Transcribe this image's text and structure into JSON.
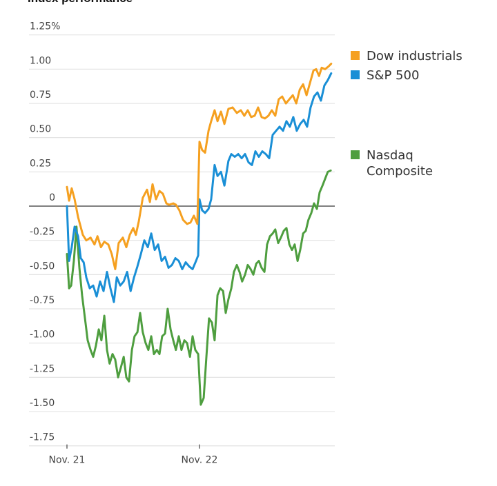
{
  "chart_data": {
    "type": "line",
    "title": "Index performance",
    "xlabel": "",
    "ylabel": "",
    "ylim": [
      -1.75,
      1.25
    ],
    "y_ticks": [
      1.25,
      1.0,
      0.75,
      0.5,
      0.25,
      0,
      -0.25,
      -0.5,
      -0.75,
      -1.0,
      -1.25,
      -1.5,
      -1.75
    ],
    "y_tick_labels": [
      "1.25%",
      "1.00",
      "0.75",
      "0.50",
      "0.25",
      "0",
      "-0.25",
      "-0.50",
      "-0.75",
      "-1.00",
      "-1.25",
      "-1.50",
      "-1.75"
    ],
    "x_ticks": [
      {
        "label": "Nov. 21",
        "t": 0
      },
      {
        "label": "Nov. 22",
        "t": 0.5
      }
    ],
    "xlim": [
      0,
      1.0
    ],
    "grid": true,
    "zero_line": true,
    "legend_position": "right",
    "series": [
      {
        "name": "Dow industrials",
        "color": "#f5a020",
        "t": [
          0,
          0.008,
          0.018,
          0.029,
          0.042,
          0.06,
          0.073,
          0.089,
          0.104,
          0.115,
          0.128,
          0.141,
          0.156,
          0.169,
          0.182,
          0.195,
          0.211,
          0.224,
          0.237,
          0.25,
          0.26,
          0.271,
          0.286,
          0.302,
          0.313,
          0.323,
          0.336,
          0.349,
          0.362,
          0.375,
          0.385,
          0.401,
          0.411,
          0.424,
          0.438,
          0.453,
          0.466,
          0.479,
          0.492,
          0.5,
          0.51,
          0.521,
          0.534,
          0.544,
          0.557,
          0.568,
          0.581,
          0.594,
          0.609,
          0.625,
          0.641,
          0.656,
          0.669,
          0.682,
          0.695,
          0.708,
          0.721,
          0.734,
          0.747,
          0.76,
          0.773,
          0.786,
          0.799,
          0.812,
          0.826,
          0.839,
          0.852,
          0.865,
          0.878,
          0.891,
          0.904,
          0.917,
          0.93,
          0.94,
          0.951,
          0.961,
          0.974,
          0.987,
          0.997
        ],
        "values": [
          0.14,
          0.04,
          0.13,
          0.05,
          -0.08,
          -0.21,
          -0.25,
          -0.23,
          -0.28,
          -0.22,
          -0.3,
          -0.26,
          -0.28,
          -0.35,
          -0.46,
          -0.27,
          -0.23,
          -0.3,
          -0.21,
          -0.16,
          -0.21,
          -0.11,
          0.06,
          0.12,
          0.03,
          0.16,
          0.05,
          0.11,
          0.09,
          0.02,
          0.01,
          0.02,
          0.01,
          -0.03,
          -0.1,
          -0.13,
          -0.12,
          -0.07,
          -0.13,
          0.47,
          0.41,
          0.39,
          0.55,
          0.62,
          0.7,
          0.62,
          0.69,
          0.6,
          0.71,
          0.72,
          0.68,
          0.7,
          0.66,
          0.7,
          0.65,
          0.66,
          0.72,
          0.65,
          0.64,
          0.66,
          0.7,
          0.66,
          0.78,
          0.8,
          0.75,
          0.78,
          0.81,
          0.75,
          0.85,
          0.89,
          0.81,
          0.9,
          0.99,
          1.0,
          0.95,
          1.01,
          1.0,
          1.02,
          1.04
        ]
      },
      {
        "name": "S&P 500",
        "color": "#1a8fd6",
        "t": [
          0,
          0.008,
          0.018,
          0.029,
          0.042,
          0.052,
          0.063,
          0.073,
          0.086,
          0.099,
          0.112,
          0.125,
          0.138,
          0.151,
          0.164,
          0.177,
          0.188,
          0.201,
          0.214,
          0.227,
          0.24,
          0.253,
          0.266,
          0.279,
          0.292,
          0.305,
          0.318,
          0.331,
          0.344,
          0.357,
          0.37,
          0.383,
          0.396,
          0.409,
          0.422,
          0.435,
          0.448,
          0.461,
          0.474,
          0.487,
          0.495,
          0.5,
          0.51,
          0.521,
          0.534,
          0.544,
          0.557,
          0.568,
          0.581,
          0.594,
          0.609,
          0.62,
          0.633,
          0.646,
          0.659,
          0.672,
          0.685,
          0.698,
          0.711,
          0.724,
          0.737,
          0.75,
          0.763,
          0.776,
          0.789,
          0.802,
          0.815,
          0.828,
          0.841,
          0.854,
          0.867,
          0.88,
          0.893,
          0.906,
          0.919,
          0.932,
          0.945,
          0.958,
          0.971,
          0.984,
          0.997
        ],
        "values": [
          0.0,
          -0.4,
          -0.3,
          -0.15,
          -0.22,
          -0.38,
          -0.41,
          -0.52,
          -0.6,
          -0.58,
          -0.66,
          -0.55,
          -0.62,
          -0.48,
          -0.6,
          -0.7,
          -0.52,
          -0.58,
          -0.55,
          -0.48,
          -0.62,
          -0.52,
          -0.44,
          -0.35,
          -0.25,
          -0.3,
          -0.2,
          -0.32,
          -0.28,
          -0.4,
          -0.37,
          -0.45,
          -0.43,
          -0.38,
          -0.4,
          -0.46,
          -0.41,
          -0.44,
          -0.46,
          -0.4,
          -0.36,
          0.05,
          -0.03,
          -0.05,
          -0.02,
          0.05,
          0.3,
          0.22,
          0.25,
          0.15,
          0.33,
          0.38,
          0.36,
          0.38,
          0.35,
          0.38,
          0.32,
          0.3,
          0.4,
          0.36,
          0.4,
          0.38,
          0.35,
          0.52,
          0.55,
          0.58,
          0.55,
          0.62,
          0.58,
          0.65,
          0.55,
          0.6,
          0.63,
          0.58,
          0.72,
          0.8,
          0.83,
          0.77,
          0.88,
          0.92,
          0.97
        ]
      },
      {
        "name": "Nasdaq Composite",
        "color": "#4e9e3f",
        "t": [
          0,
          0.008,
          0.016,
          0.026,
          0.036,
          0.047,
          0.057,
          0.068,
          0.078,
          0.089,
          0.099,
          0.109,
          0.12,
          0.13,
          0.141,
          0.151,
          0.161,
          0.172,
          0.182,
          0.193,
          0.203,
          0.214,
          0.224,
          0.234,
          0.245,
          0.255,
          0.266,
          0.276,
          0.286,
          0.297,
          0.307,
          0.318,
          0.328,
          0.339,
          0.349,
          0.359,
          0.37,
          0.38,
          0.391,
          0.401,
          0.411,
          0.422,
          0.432,
          0.443,
          0.453,
          0.464,
          0.474,
          0.484,
          0.495,
          0.505,
          0.516,
          0.526,
          0.536,
          0.547,
          0.557,
          0.568,
          0.578,
          0.589,
          0.599,
          0.609,
          0.62,
          0.63,
          0.641,
          0.651,
          0.661,
          0.672,
          0.682,
          0.693,
          0.703,
          0.714,
          0.724,
          0.734,
          0.745,
          0.755,
          0.766,
          0.776,
          0.786,
          0.797,
          0.807,
          0.818,
          0.828,
          0.839,
          0.849,
          0.859,
          0.87,
          0.88,
          0.891,
          0.901,
          0.911,
          0.922,
          0.932,
          0.943,
          0.953,
          0.964,
          0.974,
          0.984,
          0.995
        ],
        "values": [
          -0.35,
          -0.6,
          -0.58,
          -0.4,
          -0.15,
          -0.45,
          -0.65,
          -0.82,
          -0.98,
          -1.05,
          -1.1,
          -1.02,
          -0.9,
          -0.98,
          -0.8,
          -1.05,
          -1.15,
          -1.08,
          -1.12,
          -1.25,
          -1.18,
          -1.1,
          -1.25,
          -1.28,
          -1.05,
          -0.95,
          -0.92,
          -0.78,
          -0.92,
          -1.0,
          -1.05,
          -0.95,
          -1.08,
          -1.05,
          -1.08,
          -0.95,
          -0.93,
          -0.75,
          -0.9,
          -0.98,
          -1.05,
          -0.95,
          -1.05,
          -0.98,
          -1.0,
          -1.1,
          -0.95,
          -1.05,
          -1.08,
          -1.45,
          -1.4,
          -1.1,
          -0.82,
          -0.85,
          -0.98,
          -0.65,
          -0.6,
          -0.62,
          -0.78,
          -0.68,
          -0.6,
          -0.48,
          -0.43,
          -0.48,
          -0.55,
          -0.5,
          -0.43,
          -0.46,
          -0.5,
          -0.42,
          -0.4,
          -0.45,
          -0.48,
          -0.28,
          -0.22,
          -0.2,
          -0.17,
          -0.27,
          -0.23,
          -0.18,
          -0.16,
          -0.28,
          -0.32,
          -0.28,
          -0.4,
          -0.32,
          -0.2,
          -0.18,
          -0.1,
          -0.05,
          0.02,
          -0.02,
          0.1,
          0.15,
          0.2,
          0.25,
          0.26
        ]
      }
    ]
  },
  "legend": {
    "items": [
      {
        "label_lines": [
          "Dow industrials"
        ],
        "color": "#f5a020"
      },
      {
        "label_lines": [
          "S&P 500"
        ],
        "color": "#1a8fd6"
      },
      {
        "label_lines": [
          "Nasdaq",
          "Composite"
        ],
        "color": "#4e9e3f"
      }
    ]
  }
}
